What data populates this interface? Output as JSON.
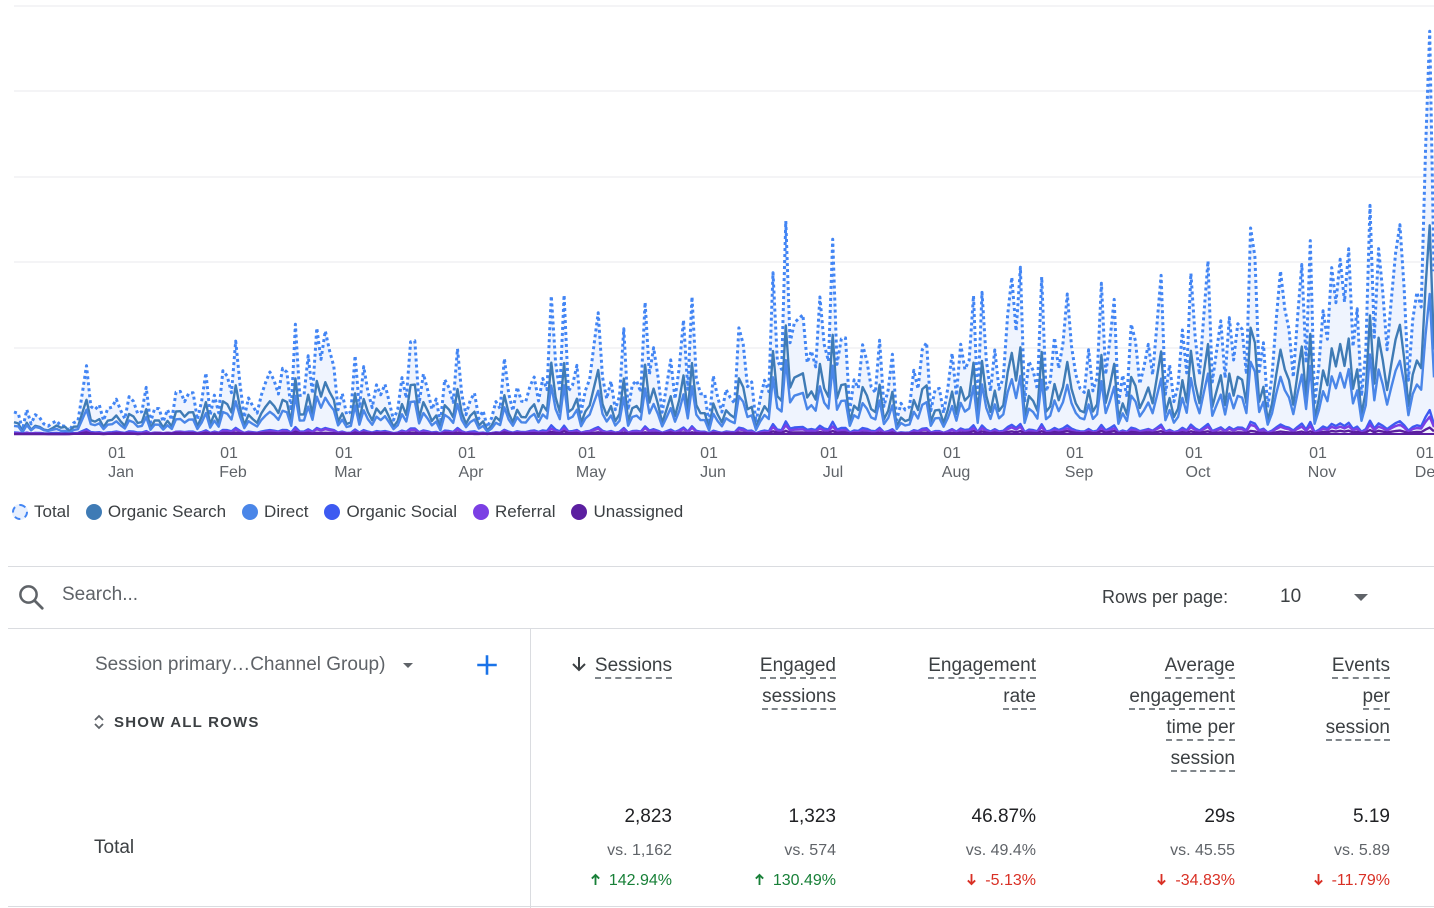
{
  "chart_data": {
    "type": "line",
    "x_tick_labels": [
      {
        "day": "01",
        "month": "Jan"
      },
      {
        "day": "01",
        "month": "Feb"
      },
      {
        "day": "01",
        "month": "Mar"
      },
      {
        "day": "01",
        "month": "Apr"
      },
      {
        "day": "01",
        "month": "May"
      },
      {
        "day": "01",
        "month": "Jun"
      },
      {
        "day": "01",
        "month": "Jul"
      },
      {
        "day": "01",
        "month": "Aug"
      },
      {
        "day": "01",
        "month": "Sep"
      },
      {
        "day": "01",
        "month": "Oct"
      },
      {
        "day": "01",
        "month": "Nov"
      },
      {
        "day": "01",
        "month": "Dec"
      }
    ],
    "grid": true,
    "legend_position": "bottom-left",
    "series": [
      {
        "name": "Total",
        "color": "#4285f4",
        "style": "dotted-area",
        "values": [
          30,
          19,
          13,
          10,
          42,
          33,
          41,
          28,
          38,
          37,
          51,
          50,
          60,
          62,
          47,
          65,
          95,
          88,
          85,
          52,
          52,
          50,
          66,
          66,
          51,
          57,
          31,
          38,
          53,
          65,
          77,
          100,
          87,
          70,
          72,
          84,
          72,
          100,
          89,
          52,
          54,
          67,
          73,
          117,
          154,
          150,
          128,
          127,
          72,
          61,
          56,
          64,
          62,
          84,
          95,
          122,
          120,
          115,
          113,
          97,
          99,
          103,
          94,
          106,
          108,
          115,
          118,
          123,
          135,
          133,
          136,
          139,
          132,
          145,
          165,
          165,
          170,
          175,
          180,
          212,
          305
        ]
      },
      {
        "name": "Organic Search",
        "color": "#3f7bb5",
        "style": "solid",
        "values": [
          16,
          8,
          6,
          10,
          21,
          17,
          22,
          15,
          20,
          20,
          27,
          26,
          31,
          33,
          25,
          34,
          48,
          44,
          43,
          27,
          27,
          26,
          35,
          35,
          27,
          30,
          17,
          20,
          27,
          34,
          40,
          51,
          45,
          37,
          38,
          44,
          38,
          51,
          46,
          27,
          29,
          35,
          38,
          60,
          78,
          77,
          65,
          66,
          38,
          32,
          30,
          34,
          33,
          44,
          49,
          63,
          62,
          60,
          59,
          50,
          51,
          54,
          49,
          55,
          56,
          60,
          61,
          64,
          70,
          69,
          70,
          72,
          68,
          75,
          85,
          85,
          88,
          91,
          94,
          110,
          158
        ]
      },
      {
        "name": "Direct",
        "color": "#4a86e8",
        "style": "solid",
        "values": [
          11,
          7,
          5,
          4,
          15,
          12,
          15,
          10,
          14,
          13,
          18,
          17,
          21,
          22,
          17,
          23,
          33,
          31,
          30,
          19,
          18,
          18,
          23,
          23,
          18,
          20,
          11,
          13,
          19,
          23,
          27,
          35,
          31,
          25,
          25,
          29,
          25,
          35,
          31,
          18,
          19,
          24,
          26,
          41,
          53,
          52,
          45,
          44,
          25,
          22,
          20,
          22,
          22,
          29,
          33,
          43,
          42,
          40,
          39,
          34,
          35,
          36,
          33,
          37,
          38,
          40,
          41,
          43,
          47,
          46,
          48,
          49,
          46,
          51,
          57,
          58,
          59,
          61,
          63,
          74,
          106
        ]
      },
      {
        "name": "Organic Social",
        "color": "#3d5af1",
        "style": "solid",
        "values": [
          2,
          1,
          1,
          1,
          3,
          2,
          3,
          2,
          2,
          2,
          3,
          3,
          4,
          4,
          3,
          4,
          6,
          5,
          5,
          3,
          3,
          3,
          4,
          4,
          3,
          4,
          2,
          2,
          3,
          4,
          5,
          6,
          5,
          4,
          4,
          5,
          4,
          6,
          5,
          3,
          3,
          4,
          5,
          7,
          9,
          9,
          8,
          8,
          5,
          4,
          3,
          4,
          4,
          5,
          6,
          7,
          7,
          7,
          7,
          6,
          6,
          6,
          6,
          6,
          6,
          7,
          7,
          7,
          8,
          8,
          8,
          8,
          8,
          9,
          10,
          10,
          10,
          10,
          11,
          13,
          18
        ]
      },
      {
        "name": "Referral",
        "color": "#7b3fe4",
        "style": "solid",
        "values": [
          1,
          1,
          0,
          0,
          2,
          1,
          2,
          1,
          2,
          2,
          2,
          2,
          3,
          3,
          2,
          3,
          4,
          4,
          4,
          2,
          2,
          2,
          3,
          3,
          2,
          3,
          1,
          2,
          2,
          3,
          3,
          4,
          4,
          3,
          3,
          4,
          3,
          4,
          4,
          2,
          2,
          3,
          3,
          5,
          6,
          6,
          5,
          5,
          3,
          3,
          2,
          3,
          3,
          4,
          4,
          5,
          5,
          5,
          5,
          4,
          4,
          4,
          4,
          4,
          5,
          5,
          5,
          5,
          6,
          6,
          6,
          6,
          6,
          6,
          7,
          7,
          7,
          7,
          8,
          9,
          13
        ]
      },
      {
        "name": "Unassigned",
        "color": "#5b1fa0",
        "style": "solid",
        "values": [
          0,
          0,
          0,
          0,
          1,
          0,
          1,
          0,
          1,
          1,
          1,
          1,
          1,
          1,
          1,
          1,
          2,
          1,
          1,
          1,
          1,
          1,
          1,
          1,
          1,
          1,
          0,
          1,
          1,
          1,
          1,
          2,
          1,
          1,
          1,
          1,
          1,
          2,
          1,
          1,
          1,
          1,
          1,
          2,
          2,
          2,
          2,
          2,
          1,
          1,
          1,
          1,
          1,
          1,
          2,
          2,
          2,
          2,
          2,
          2,
          2,
          2,
          2,
          2,
          2,
          2,
          2,
          2,
          2,
          2,
          2,
          2,
          2,
          2,
          3,
          3,
          3,
          3,
          3,
          3,
          5
        ]
      }
    ],
    "ylim": [
      0,
      380
    ]
  },
  "legend": [
    {
      "label": "Total",
      "color": "#4285f4",
      "style": "dashed"
    },
    {
      "label": "Organic Search",
      "color": "#3f7bb5"
    },
    {
      "label": "Direct",
      "color": "#4a86e8"
    },
    {
      "label": "Organic Social",
      "color": "#3d5af1"
    },
    {
      "label": "Referral",
      "color": "#7b3fe4"
    },
    {
      "label": "Unassigned",
      "color": "#5b1fa0"
    }
  ],
  "search": {
    "placeholder": "Search..."
  },
  "pagination": {
    "rows_label": "Rows per page:",
    "rows_value": "10"
  },
  "table": {
    "dimension_header": "Session primary…Channel Group)",
    "show_all_rows": "SHOW ALL ROWS",
    "columns": [
      {
        "lines": [
          "Sessions"
        ],
        "sorted": true
      },
      {
        "lines": [
          "Engaged",
          "sessions"
        ]
      },
      {
        "lines": [
          "Engagement",
          "rate"
        ]
      },
      {
        "lines": [
          "Average",
          "engagement",
          "time per",
          "session"
        ]
      },
      {
        "lines": [
          "Events",
          "per",
          "session"
        ]
      }
    ],
    "total": {
      "label": "Total",
      "values": [
        "2,823",
        "1,323",
        "46.87%",
        "29s",
        "5.19"
      ],
      "comparisons": [
        "vs. 1,162",
        "vs. 574",
        "vs. 49.4%",
        "vs. 45.55",
        "vs. 5.89"
      ],
      "deltas": [
        {
          "text": "142.94%",
          "direction": "up"
        },
        {
          "text": "130.49%",
          "direction": "up"
        },
        {
          "text": "-5.13%",
          "direction": "down"
        },
        {
          "text": "-34.83%",
          "direction": "down"
        },
        {
          "text": "-11.79%",
          "direction": "down"
        }
      ]
    }
  },
  "colors": {
    "up": "#188038",
    "down": "#d93025",
    "accent": "#1a73e8"
  }
}
